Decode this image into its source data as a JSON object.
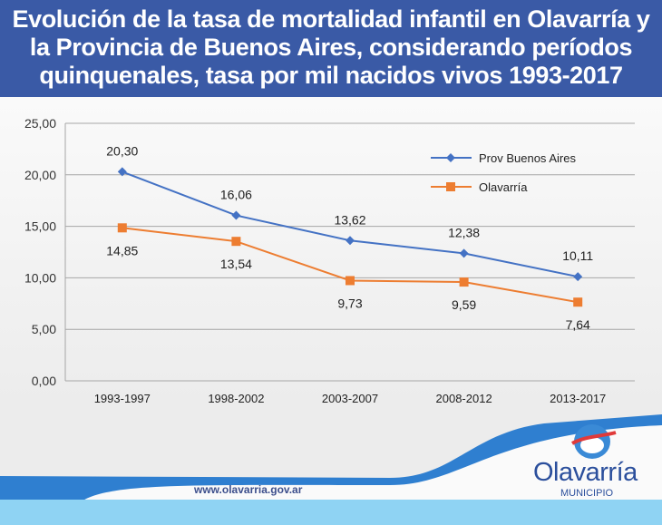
{
  "header": {
    "title": "Evolución de la tasa de mortalidad infantil en Olavarría y la Provincia de Buenos Aires, considerando períodos quinquenales, tasa por mil nacidos vivos 1993-2017"
  },
  "chart_data": {
    "type": "line",
    "title": "Evolución de la tasa de mortalidad infantil en Olavarría y la Provincia de Buenos Aires, considerando períodos quinquenales, tasa por mil nacidos vivos 1993-2017",
    "categories": [
      "1993-1997",
      "1998-2002",
      "2003-2007",
      "2008-2012",
      "2013-2017"
    ],
    "series": [
      {
        "name": "Prov Buenos Aires",
        "values": [
          20.3,
          16.06,
          13.62,
          12.38,
          10.11
        ],
        "labels": [
          "20,30",
          "16,06",
          "13,62",
          "12,38",
          "10,11"
        ],
        "color": "#4472c4",
        "marker": "diamond"
      },
      {
        "name": "Olavarría",
        "values": [
          14.85,
          13.54,
          9.73,
          9.59,
          7.64
        ],
        "labels": [
          "14,85",
          "13,54",
          "9,73",
          "9,59",
          "7,64"
        ],
        "color": "#ed7d31",
        "marker": "square"
      }
    ],
    "ylim": [
      0,
      25
    ],
    "yticks": [
      0,
      5,
      10,
      15,
      20,
      25
    ],
    "ytick_labels": [
      "0,00",
      "5,00",
      "10,00",
      "15,00",
      "20,00",
      "25,00"
    ],
    "grid": true,
    "legend": "top-right",
    "xlabel": "",
    "ylabel": ""
  },
  "footer": {
    "url": "www.olavarria.gov.ar",
    "logo_name": "Olavarría",
    "logo_sub": "MUNICIPIO"
  }
}
